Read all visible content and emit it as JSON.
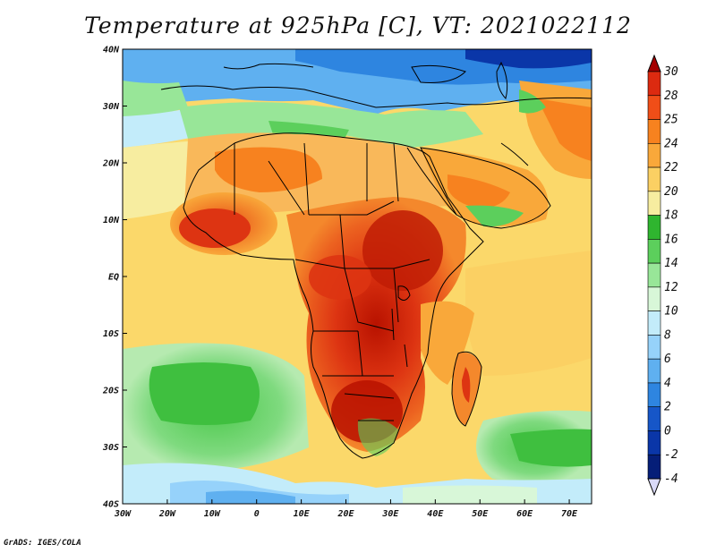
{
  "title": "Temperature at 925hPa [C], VT: 2021022112",
  "credit": "GrADS: IGES/COLA",
  "lat_ticks": [
    "40N",
    "30N",
    "20N",
    "10N",
    "EQ",
    "10S",
    "20S",
    "30S",
    "40S"
  ],
  "lon_ticks": [
    "30W",
    "20W",
    "10W",
    "0",
    "10E",
    "20E",
    "30E",
    "40E",
    "50E",
    "60E",
    "70E"
  ],
  "colorbar": {
    "levels": [
      "30",
      "28",
      "25",
      "24",
      "22",
      "20",
      "18",
      "16",
      "14",
      "12",
      "10",
      "8",
      "6",
      "4",
      "2",
      "0",
      "-2",
      "-4"
    ],
    "colors": [
      "#a50000",
      "#dc2a10",
      "#f04e18",
      "#f7821f",
      "#f9a83a",
      "#fbd063",
      "#f7eda0",
      "#2fb52f",
      "#5ccf5c",
      "#98e698",
      "#d8f7d8",
      "#c3ecfa",
      "#96d2fa",
      "#5fb0f0",
      "#2e85e0",
      "#1656c8",
      "#0a36a8",
      "#051e78",
      "#d9d9f7"
    ]
  }
}
